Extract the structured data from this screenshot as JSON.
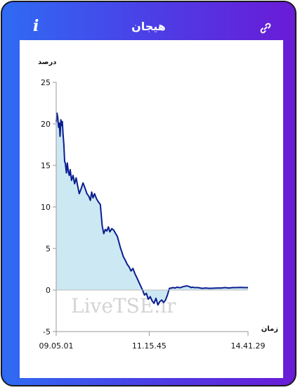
{
  "header": {
    "title": "هیجان",
    "info_icon": "info-icon",
    "link_icon": "link-icon"
  },
  "watermark": "LiveTSE.ir",
  "colors": {
    "gradient_start": "#2f6bf3",
    "gradient_end": "#6a1bd6",
    "line": "#0a1f8f",
    "fill": "#cce8f3"
  },
  "chart_data": {
    "type": "area",
    "title": "",
    "ylabel": "درصد",
    "xlabel": "زمان",
    "ylim": [
      -5,
      25
    ],
    "yticks": [
      -5,
      0,
      5,
      10,
      15,
      20,
      25
    ],
    "xlim": [
      0,
      100
    ],
    "xticks": [
      {
        "pos": 0,
        "label": "09.05.01"
      },
      {
        "pos": 48.5,
        "label": "11.15.45"
      },
      {
        "pos": 100,
        "label": "14.41.29"
      }
    ],
    "grid": false,
    "series": [
      {
        "x": [
          0,
          0.4,
          0.8,
          1.2,
          1.6,
          2.0,
          2.4,
          2.8,
          3.2,
          3.6,
          4.0,
          4.4,
          4.8,
          5.3,
          5.8,
          6.3,
          6.8,
          7.3,
          8,
          8.8,
          9.6,
          10.4,
          11.2,
          12,
          13,
          14,
          15,
          16,
          17,
          17.8,
          18.5,
          19.2,
          20,
          21,
          22,
          23,
          24,
          24.8,
          25.6,
          26.4,
          27.2,
          28,
          29,
          30,
          31,
          31.8,
          32.4,
          33,
          33.6,
          34.2,
          35,
          36,
          37,
          38,
          39,
          40,
          41,
          42,
          43,
          44,
          45,
          46,
          47,
          48,
          49,
          50,
          51,
          52,
          53,
          54,
          55,
          56,
          57,
          58,
          59,
          60,
          61,
          62,
          63,
          64,
          65,
          66,
          67,
          68,
          69,
          69.6,
          70.2,
          71,
          72,
          74,
          76,
          78,
          80,
          82,
          84,
          86,
          88,
          90,
          92,
          94,
          96,
          98,
          100
        ],
        "y": [
          20.2,
          21.3,
          20.8,
          19.6,
          20.1,
          18.5,
          20.5,
          19.8,
          20.3,
          18.7,
          17.5,
          15.5,
          15.2,
          14.1,
          15.3,
          14.3,
          13.8,
          14.5,
          13.2,
          13.8,
          12.8,
          13.5,
          12.5,
          11.6,
          12.2,
          12.9,
          12.3,
          11.6,
          11.3,
          10.8,
          11.8,
          11.1,
          11.6,
          11.0,
          10.6,
          10.3,
          7.7,
          6.8,
          7.3,
          7.1,
          7.6,
          7.0,
          7.4,
          7.2,
          6.8,
          6.5,
          6.0,
          5.5,
          5.0,
          4.6,
          4.0,
          3.6,
          3.1,
          2.8,
          2.3,
          2.6,
          2.0,
          1.5,
          1.0,
          0.5,
          0.0,
          -0.6,
          -0.4,
          -1.1,
          -0.8,
          -1.3,
          -1.6,
          -1.0,
          -1.8,
          -1.4,
          -1.2,
          -1.5,
          -1.2,
          -0.6,
          0.2,
          0.25,
          0.3,
          0.25,
          0.35,
          0.3,
          0.3,
          0.4,
          0.45,
          0.5,
          0.45,
          0.4,
          0.3,
          0.35,
          0.3,
          0.3,
          0.2,
          0.25,
          0.2,
          0.22,
          0.25,
          0.25,
          0.3,
          0.25,
          0.3,
          0.3,
          0.32,
          0.3,
          0.3
        ]
      }
    ]
  }
}
